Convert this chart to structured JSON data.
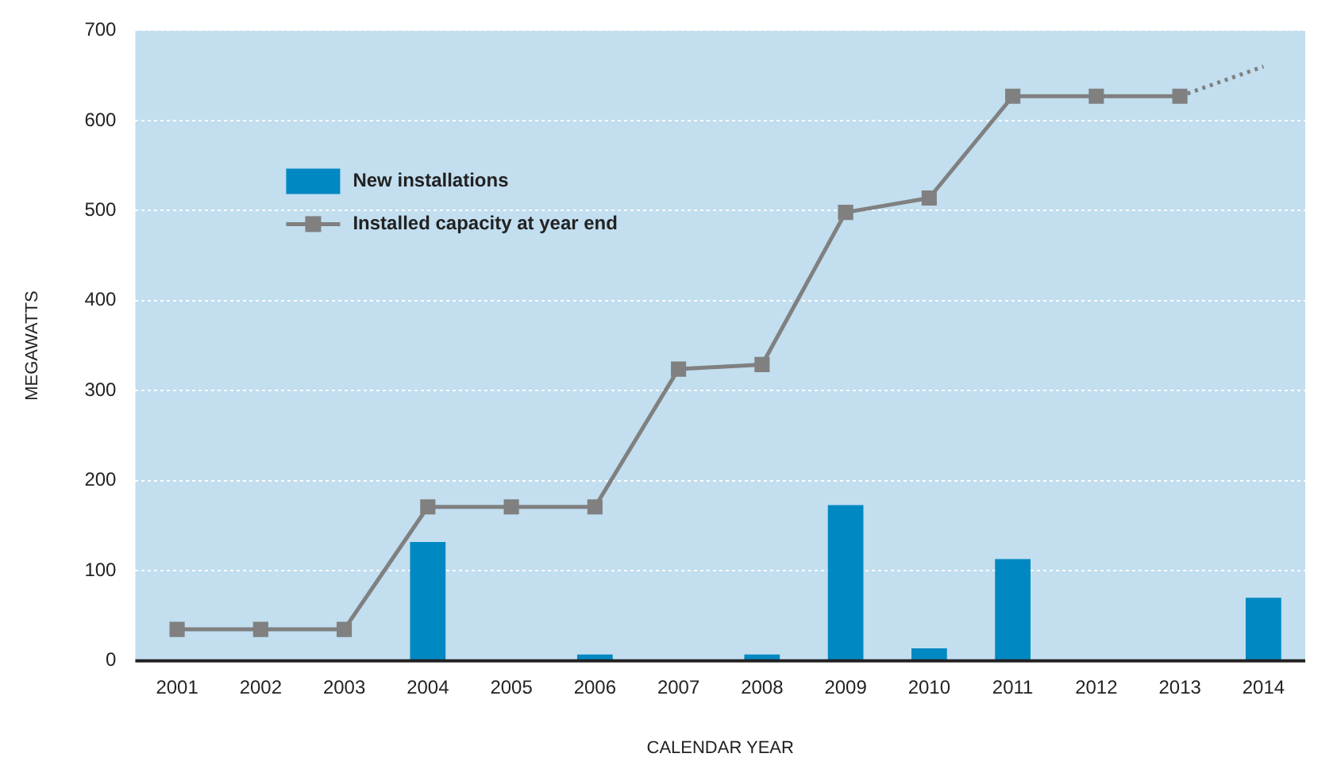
{
  "chart_data": {
    "type": "bar",
    "xlabel": "CALENDAR YEAR",
    "ylabel": "MEGAWATTS",
    "categories": [
      "2001",
      "2002",
      "2003",
      "2004",
      "2005",
      "2006",
      "2007",
      "2008",
      "2009",
      "2010",
      "2011",
      "2012",
      "2013",
      "2014"
    ],
    "series": [
      {
        "name": "New installations",
        "color": "#0088c2",
        "values": [
          null,
          null,
          null,
          132,
          null,
          7,
          null,
          7,
          173,
          14,
          113,
          null,
          null,
          70
        ]
      },
      {
        "name": "Installed capacity at year end",
        "type": "line",
        "color": "#808080",
        "marker": "square",
        "line_style": "solid",
        "values": [
          35,
          35,
          35,
          171,
          171,
          171,
          324,
          329,
          498,
          514,
          627,
          627,
          627,
          null
        ]
      },
      {
        "type": "line",
        "color": "#808080",
        "line_style": "dotted",
        "values": [
          null,
          null,
          null,
          null,
          null,
          null,
          null,
          null,
          null,
          null,
          null,
          null,
          627,
          660
        ]
      }
    ],
    "ylim": [
      0,
      700
    ],
    "yticks": [
      0,
      100,
      200,
      300,
      400,
      500,
      600,
      700
    ],
    "grid": "y",
    "legend": "top left"
  }
}
